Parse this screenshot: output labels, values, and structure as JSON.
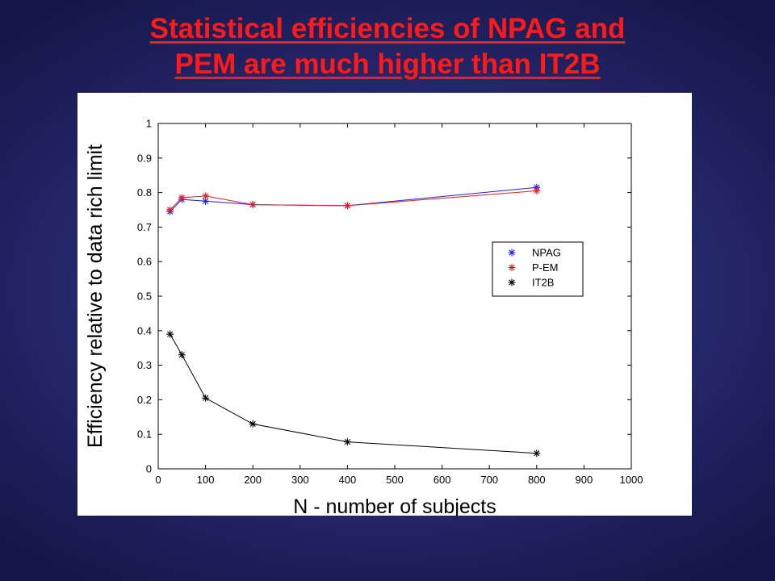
{
  "slide": {
    "title_line1": "Statistical efficiencies of NPAG and",
    "title_line2": "PEM are much higher than IT2B"
  },
  "colors": {
    "title": "#ff1a1a",
    "npag": "#1f1fe0",
    "pem": "#e01f1f",
    "it2b": "#000000"
  },
  "chart_data": {
    "type": "line",
    "xlabel": "N - number of subjects",
    "ylabel": "Efficiency relative to data rich limit",
    "xlim": [
      0,
      1000
    ],
    "ylim": [
      0,
      1
    ],
    "xticks": [
      "0",
      "100",
      "200",
      "300",
      "400",
      "500",
      "600",
      "700",
      "800",
      "900",
      "1000"
    ],
    "yticks": [
      "0",
      "0.1",
      "0.2",
      "0.3",
      "0.4",
      "0.5",
      "0.6",
      "0.7",
      "0.8",
      "0.9",
      "1"
    ],
    "grid": false,
    "legend_position": "middle-right",
    "marker": "asterisk",
    "series": [
      {
        "name": "NPAG",
        "color": "#1f1fe0",
        "x": [
          25,
          50,
          100,
          200,
          400,
          800
        ],
        "y": [
          0.745,
          0.78,
          0.775,
          0.765,
          0.762,
          0.815
        ]
      },
      {
        "name": "P-EM",
        "color": "#e01f1f",
        "x": [
          25,
          50,
          100,
          200,
          400,
          800
        ],
        "y": [
          0.75,
          0.785,
          0.79,
          0.765,
          0.762,
          0.805
        ]
      },
      {
        "name": "IT2B",
        "color": "#000000",
        "x": [
          25,
          50,
          100,
          200,
          400,
          800
        ],
        "y": [
          0.39,
          0.33,
          0.205,
          0.13,
          0.078,
          0.045
        ]
      }
    ]
  }
}
